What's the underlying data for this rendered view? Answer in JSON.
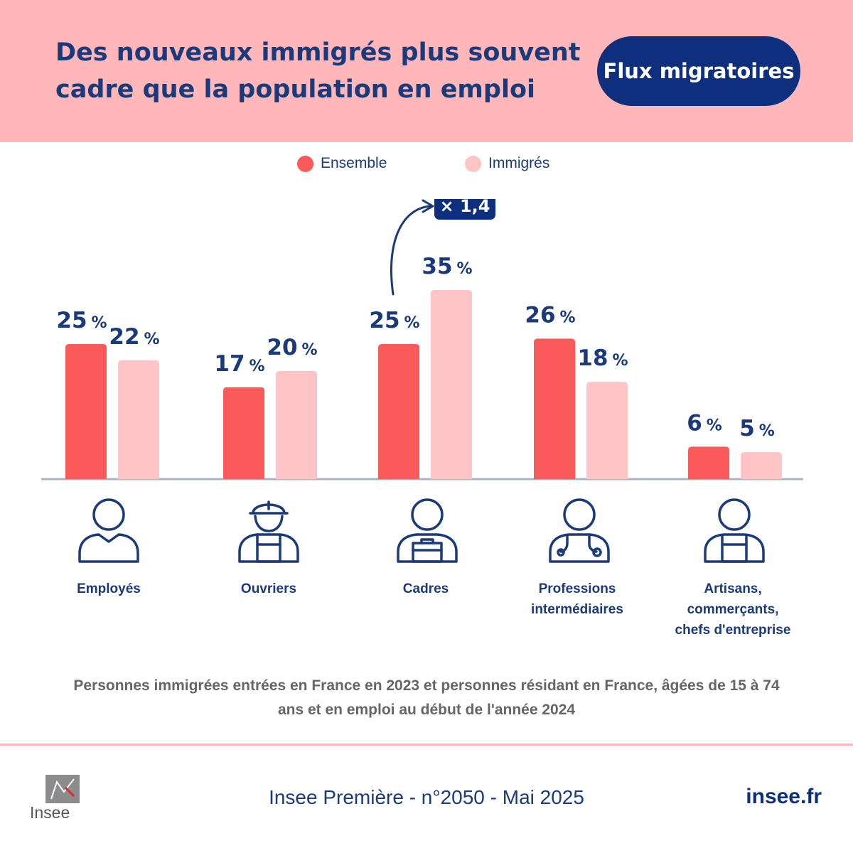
{
  "header": {
    "title": "Des nouveaux immigrés plus souvent cadre que la population en emploi",
    "badge": "Flux migratoires"
  },
  "colors": {
    "header_bg": "#ffb7b9",
    "ensemble": "#fb5a5a",
    "immigres": "#ffc4c6",
    "navy": "#1b3a7a",
    "badge": "#0d2f7d"
  },
  "chart_data": {
    "type": "bar",
    "categories": [
      "Employés",
      "Ouvriers",
      "Cadres",
      "Professions intermédiaires",
      "Artisans, commerçants, chefs d'entreprise"
    ],
    "series": [
      {
        "name": "Ensemble",
        "values": [
          25,
          17,
          25,
          26,
          6
        ]
      },
      {
        "name": "Immigrés",
        "values": [
          22,
          20,
          35,
          18,
          5
        ]
      }
    ],
    "unit": "%",
    "annotation": "× 1,4",
    "legend": "top-center",
    "grid": false
  },
  "icons": [
    "employee-icon",
    "worker-hardhat-icon",
    "manager-briefcase-icon",
    "doctor-stethoscope-icon",
    "craftsman-apron-icon"
  ],
  "category_labels": [
    "Employés",
    "Ouvriers",
    "Cadres",
    "Professions\nintermédiaires",
    "Artisans,\ncommerçants,\nchefs d'entreprise"
  ],
  "caption": "Personnes immigrées entrées en France en 2023 et personnes résidant en France, âgées de 15 à 74 ans et en emploi au début de l'année 2024",
  "footer": {
    "logo_text": "Insee",
    "source": "Insee Première - n°2050 - Mai 2025",
    "site": "insee.fr"
  }
}
